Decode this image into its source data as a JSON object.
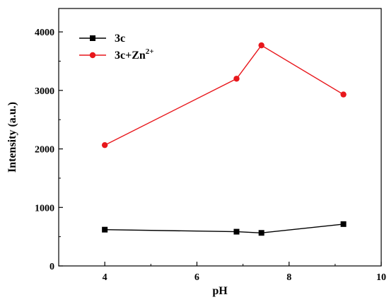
{
  "chart_data": {
    "type": "line",
    "title": "",
    "xlabel": "pH",
    "ylabel": "Intensity (a.u.)",
    "xlim": [
      3,
      10
    ],
    "ylim": [
      0,
      4400
    ],
    "xticks": [
      4,
      6,
      8,
      10
    ],
    "yticks": [
      0,
      1000,
      2000,
      3000,
      4000
    ],
    "grid": false,
    "legend_placement": "top-left",
    "series": [
      {
        "name": "3c",
        "name_base": "3c",
        "name_superscript": "",
        "color": "#000000",
        "marker": "square",
        "x": [
          4.0,
          6.86,
          7.4,
          9.18
        ],
        "y": [
          620,
          585,
          565,
          715
        ]
      },
      {
        "name": "3c+Zn2+",
        "name_base": "3c+Zn",
        "name_superscript": "2+",
        "color": "#e8171c",
        "marker": "circle",
        "x": [
          4.0,
          6.86,
          7.4,
          9.18
        ],
        "y": [
          2065,
          3200,
          3770,
          2930
        ]
      }
    ]
  }
}
